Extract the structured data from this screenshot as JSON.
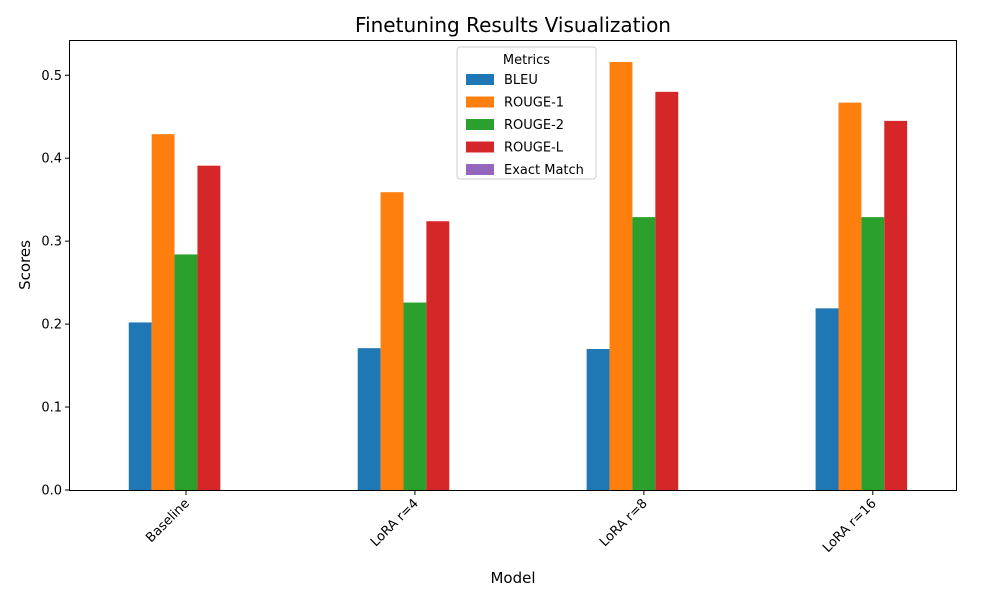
{
  "chart_data": {
    "type": "bar",
    "title": "Finetuning Results Visualization",
    "xlabel": "Model",
    "ylabel": "Scores",
    "categories": [
      "Baseline",
      "LoRA r=4",
      "LoRA r=8",
      "LoRA r=16"
    ],
    "series": [
      {
        "name": "BLEU",
        "color": "#1f77b4",
        "values": [
          0.202,
          0.171,
          0.17,
          0.219
        ]
      },
      {
        "name": "ROUGE-1",
        "color": "#ff7f0e",
        "values": [
          0.429,
          0.359,
          0.516,
          0.467
        ]
      },
      {
        "name": "ROUGE-2",
        "color": "#2ca02c",
        "values": [
          0.284,
          0.226,
          0.329,
          0.329
        ]
      },
      {
        "name": "ROUGE-L",
        "color": "#d62728",
        "values": [
          0.391,
          0.324,
          0.48,
          0.445
        ]
      },
      {
        "name": "Exact Match",
        "color": "#9467bd",
        "values": [
          0.0,
          0.0,
          0.0,
          0.0
        ]
      }
    ],
    "ylim": [
      0,
      0.5425
    ],
    "yticks": [
      "0.0",
      "0.1",
      "0.2",
      "0.3",
      "0.4",
      "0.5"
    ],
    "legend": {
      "title": "Metrics",
      "position": "upper center"
    },
    "grid": false
  }
}
